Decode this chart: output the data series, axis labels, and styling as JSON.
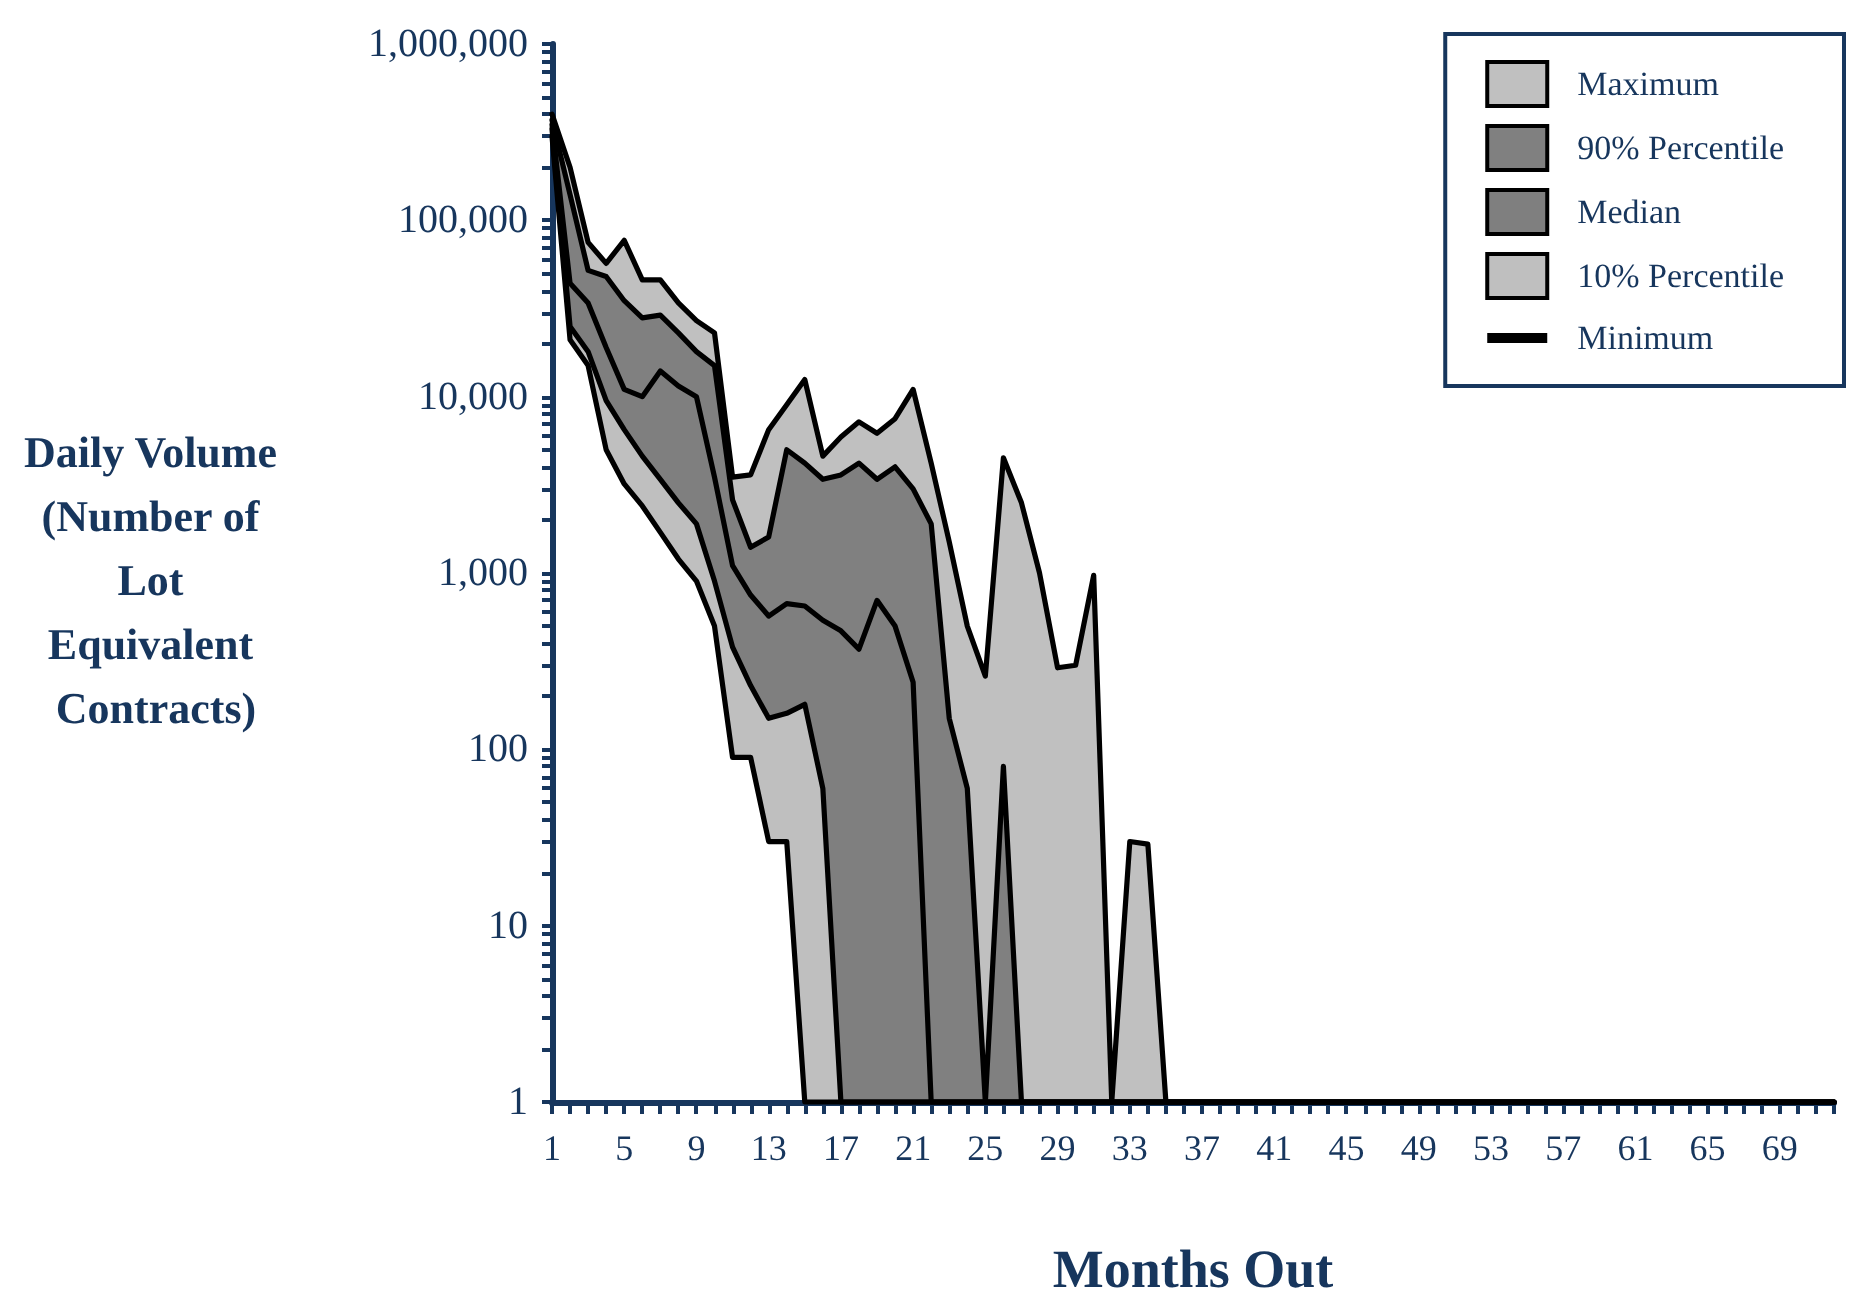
{
  "chart_data": {
    "type": "area",
    "xlabel": "Months Out",
    "ylabel": "Daily Volume (Number of Lot Equivalent Contracts)",
    "categories": [
      "1",
      null,
      null,
      null,
      "5",
      null,
      null,
      null,
      "9",
      null,
      null,
      null,
      "13",
      null,
      null,
      null,
      "17",
      null,
      null,
      null,
      "21",
      null,
      null,
      null,
      "25",
      null,
      null,
      null,
      "29",
      null,
      null,
      null,
      "33",
      null,
      null,
      null,
      "37",
      null,
      null,
      null,
      "41",
      null,
      null,
      null,
      "45",
      null,
      null,
      null,
      "49",
      null,
      null,
      null,
      "53",
      null,
      null,
      null,
      "57",
      null,
      null,
      null,
      "61",
      null,
      null,
      null,
      "65",
      null,
      null,
      null,
      "69",
      null,
      null,
      null
    ],
    "series": [
      {
        "name": "Maximum",
        "color": "#c0c0c0",
        "values": [
          400000,
          200000,
          75000,
          57000,
          77000,
          46000,
          46000,
          34000,
          27000,
          23000,
          3500,
          3600,
          6500,
          9000,
          12500,
          4600,
          5900,
          7200,
          6200,
          7500,
          11000,
          4200,
          1500,
          500,
          260,
          4500,
          2500,
          1000,
          290,
          300,
          970,
          1,
          30,
          29,
          1,
          1,
          1,
          1,
          1,
          1,
          1,
          1,
          1,
          1,
          1,
          1,
          1,
          1,
          1,
          1,
          1,
          1,
          1,
          1,
          1,
          1,
          1,
          1,
          1,
          1,
          1,
          1,
          1,
          1,
          1,
          1,
          1,
          1,
          1,
          1,
          1,
          1
        ]
      },
      {
        "name": "90% Percentile",
        "color": "#808080",
        "values": [
          370000,
          140000,
          52000,
          48000,
          35000,
          28000,
          29000,
          23000,
          18000,
          15000,
          2600,
          1400,
          1600,
          5000,
          4200,
          3400,
          3600,
          4200,
          3400,
          4000,
          3000,
          1900,
          150,
          60,
          1,
          80,
          1,
          1,
          1,
          1,
          1,
          1,
          1,
          1,
          1,
          1,
          1,
          1,
          1,
          1,
          1,
          1,
          1,
          1,
          1,
          1,
          1,
          1,
          1,
          1,
          1,
          1,
          1,
          1,
          1,
          1,
          1,
          1,
          1,
          1,
          1,
          1,
          1,
          1,
          1,
          1,
          1,
          1,
          1,
          1,
          1,
          1
        ]
      },
      {
        "name": "Median",
        "color": "#7f7f7f",
        "values": [
          350000,
          44000,
          34000,
          19000,
          11000,
          10000,
          14000,
          11500,
          10000,
          3500,
          1100,
          750,
          570,
          670,
          650,
          540,
          470,
          370,
          700,
          500,
          240,
          1,
          1,
          1,
          1,
          1,
          1,
          1,
          1,
          1,
          1,
          1,
          1,
          1,
          1,
          1,
          1,
          1,
          1,
          1,
          1,
          1,
          1,
          1,
          1,
          1,
          1,
          1,
          1,
          1,
          1,
          1,
          1,
          1,
          1,
          1,
          1,
          1,
          1,
          1,
          1,
          1,
          1,
          1,
          1,
          1,
          1,
          1,
          1,
          1,
          1,
          1
        ]
      },
      {
        "name": "10% Percentile",
        "color": "#bfbfbf",
        "values": [
          330000,
          25000,
          18000,
          9500,
          6500,
          4600,
          3400,
          2500,
          1900,
          900,
          380,
          230,
          150,
          160,
          180,
          60,
          1,
          1,
          1,
          1,
          1,
          1,
          1,
          1,
          1,
          1,
          1,
          1,
          1,
          1,
          1,
          1,
          1,
          1,
          1,
          1,
          1,
          1,
          1,
          1,
          1,
          1,
          1,
          1,
          1,
          1,
          1,
          1,
          1,
          1,
          1,
          1,
          1,
          1,
          1,
          1,
          1,
          1,
          1,
          1,
          1,
          1,
          1,
          1,
          1,
          1,
          1,
          1,
          1,
          1,
          1,
          1
        ]
      },
      {
        "name": "Minimum",
        "type": "line",
        "color": "#000000",
        "values": [
          300000,
          21000,
          15000,
          5000,
          3200,
          2400,
          1700,
          1200,
          900,
          500,
          90,
          90,
          30,
          30,
          1,
          1,
          1,
          1,
          1,
          1,
          1,
          1,
          1,
          1,
          1,
          1,
          1,
          1,
          1,
          1,
          1,
          1,
          1,
          1,
          1,
          1,
          1,
          1,
          1,
          1,
          1,
          1,
          1,
          1,
          1,
          1,
          1,
          1,
          1,
          1,
          1,
          1,
          1,
          1,
          1,
          1,
          1,
          1,
          1,
          1,
          1,
          1,
          1,
          1,
          1,
          1,
          1,
          1,
          1,
          1,
          1,
          1
        ]
      }
    ],
    "log": true,
    "ylim": [
      1,
      1000000
    ],
    "yticks": [
      1,
      {
        "value": 2,
        "label": null
      },
      {
        "value": 3,
        "label": null
      },
      {
        "value": 4,
        "label": null
      },
      {
        "value": 5,
        "label": null
      },
      {
        "value": 6,
        "label": null
      },
      {
        "value": 7,
        "label": null
      },
      {
        "value": 8,
        "label": null
      },
      {
        "value": 9,
        "label": null
      },
      10,
      {
        "value": 20,
        "label": null
      },
      {
        "value": 30,
        "label": null
      },
      {
        "value": 40,
        "label": null
      },
      {
        "value": 50,
        "label": null
      },
      {
        "value": 60,
        "label": null
      },
      {
        "value": 70,
        "label": null
      },
      {
        "value": 80,
        "label": null
      },
      {
        "value": 90,
        "label": null
      },
      100,
      {
        "value": 200,
        "label": null
      },
      {
        "value": 300,
        "label": null
      },
      {
        "value": 400,
        "label": null
      },
      {
        "value": 500,
        "label": null
      },
      {
        "value": 600,
        "label": null
      },
      {
        "value": 700,
        "label": null
      },
      {
        "value": 800,
        "label": null
      },
      {
        "value": 900,
        "label": null
      },
      {
        "value": 1000,
        "label": "1,000"
      },
      {
        "value": 2000,
        "label": null
      },
      {
        "value": 3000,
        "label": null
      },
      {
        "value": 4000,
        "label": null
      },
      {
        "value": 5000,
        "label": null
      },
      {
        "value": 6000,
        "label": null
      },
      {
        "value": 7000,
        "label": null
      },
      {
        "value": 8000,
        "label": null
      },
      {
        "value": 9000,
        "label": null
      },
      {
        "value": 10000,
        "label": "10,000"
      },
      {
        "value": 20000,
        "label": null
      },
      {
        "value": 30000,
        "label": null
      },
      {
        "value": 40000,
        "label": null
      },
      {
        "value": 50000,
        "label": null
      },
      {
        "value": 60000,
        "label": null
      },
      {
        "value": 70000,
        "label": null
      },
      {
        "value": 80000,
        "label": null
      },
      {
        "value": 90000,
        "label": null
      },
      {
        "value": 100000,
        "label": "100,000"
      },
      {
        "value": 200000,
        "label": null
      },
      {
        "value": 300000,
        "label": null
      },
      {
        "value": 400000,
        "label": null
      },
      {
        "value": 500000,
        "label": null
      },
      {
        "value": 600000,
        "label": null
      },
      {
        "value": 700000,
        "label": null
      },
      {
        "value": 800000,
        "label": null
      },
      {
        "value": 900000,
        "label": null
      },
      {
        "value": 1000000,
        "label": "1,000,000"
      }
    ],
    "legend": "top right"
  }
}
